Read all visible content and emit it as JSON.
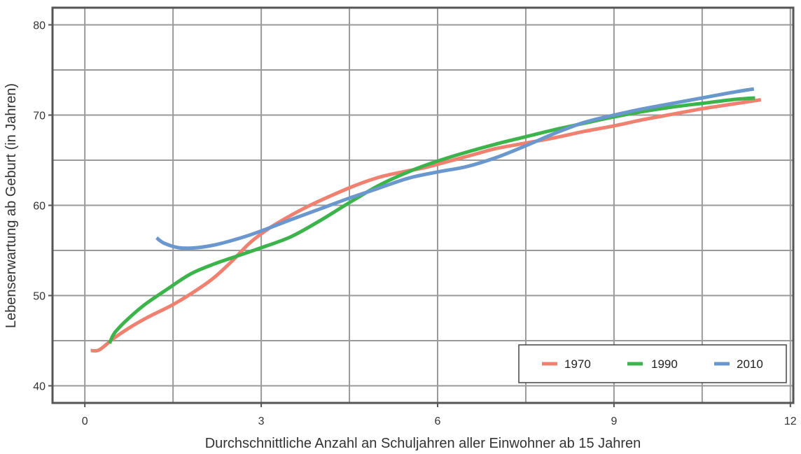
{
  "chart_data": {
    "type": "line",
    "title": "",
    "xlabel": "Durchschnittliche Anzahl an Schuljahren aller Einwohner ab 15 Jahren",
    "ylabel": "Lebenserwartung ab Geburt (in Jahren)",
    "xlim": [
      -0.55,
      12.05
    ],
    "ylim": [
      38.1,
      81.9
    ],
    "x_ticks": [
      0,
      3,
      6,
      9,
      12
    ],
    "y_ticks": [
      40,
      50,
      60,
      70,
      80
    ],
    "grid": true,
    "legend_position": "bottom-right",
    "series": [
      {
        "name": "1970",
        "color": "#f08070",
        "x": [
          0.1,
          0.25,
          0.5,
          0.8,
          1.1,
          1.5,
          1.9,
          2.2,
          2.5,
          2.8,
          3.1,
          3.4,
          3.8,
          4.2,
          4.6,
          5.0,
          5.4,
          5.8,
          6.2,
          6.6,
          7.0,
          7.5,
          8.0,
          8.5,
          9.0,
          9.5,
          10.0,
          10.5,
          11.0,
          11.5
        ],
        "y": [
          43.9,
          44.0,
          45.3,
          46.6,
          47.7,
          49.0,
          50.6,
          52.0,
          53.8,
          55.8,
          57.3,
          58.5,
          59.9,
          61.1,
          62.2,
          63.1,
          63.7,
          64.2,
          64.9,
          65.6,
          66.3,
          66.9,
          67.5,
          68.2,
          68.8,
          69.5,
          70.1,
          70.7,
          71.2,
          71.7
        ]
      },
      {
        "name": "1990",
        "color": "#3cb44b",
        "x": [
          0.42,
          0.5,
          0.7,
          1.0,
          1.4,
          1.8,
          2.2,
          2.6,
          3.0,
          3.5,
          4.0,
          4.5,
          5.0,
          5.5,
          6.0,
          6.5,
          7.0,
          7.5,
          8.0,
          8.5,
          9.0,
          9.5,
          10.0,
          10.5,
          11.0,
          11.4
        ],
        "y": [
          44.7,
          45.8,
          47.2,
          48.9,
          50.7,
          52.4,
          53.5,
          54.4,
          55.3,
          56.5,
          58.3,
          60.3,
          62.2,
          63.7,
          64.9,
          65.9,
          66.8,
          67.6,
          68.4,
          69.1,
          69.8,
          70.4,
          70.9,
          71.3,
          71.7,
          71.9
        ]
      },
      {
        "name": "2010",
        "color": "#6a97cd",
        "x": [
          1.22,
          1.35,
          1.6,
          1.9,
          2.2,
          2.5,
          2.8,
          3.1,
          3.5,
          4.0,
          4.5,
          5.0,
          5.5,
          6.0,
          6.5,
          7.0,
          7.5,
          8.0,
          8.5,
          9.0,
          9.5,
          10.0,
          10.5,
          11.0,
          11.38
        ],
        "y": [
          56.4,
          55.8,
          55.3,
          55.3,
          55.6,
          56.1,
          56.7,
          57.4,
          58.4,
          59.6,
          60.8,
          61.9,
          63.0,
          63.7,
          64.3,
          65.3,
          66.6,
          68.0,
          69.2,
          70.0,
          70.7,
          71.3,
          71.9,
          72.5,
          72.9
        ]
      }
    ]
  }
}
